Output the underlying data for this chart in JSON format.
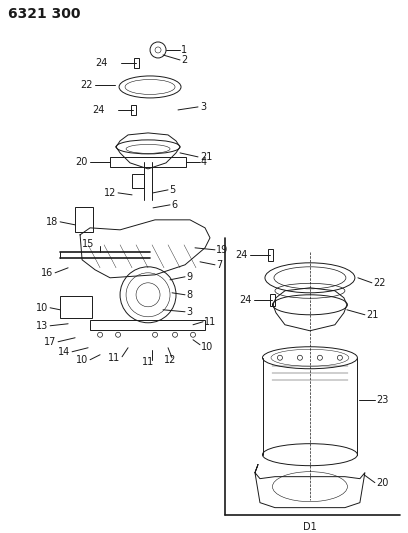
{
  "title": "6321 300",
  "bg_color": "#ffffff",
  "line_color": "#1a1a1a",
  "title_fontsize": 10,
  "label_fontsize": 7,
  "subtitle": "D1",
  "fig_width": 4.08,
  "fig_height": 5.33,
  "dpi": 100
}
